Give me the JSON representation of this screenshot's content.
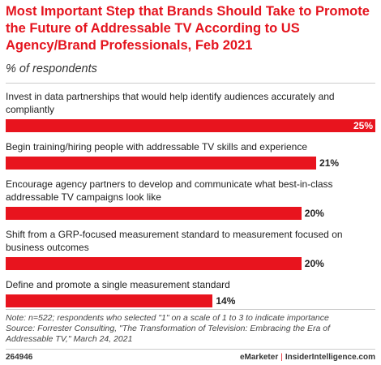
{
  "chart_data": {
    "type": "bar",
    "orientation": "horizontal",
    "title": "Most Important Step that Brands Should Take to Promote the Future of Addressable TV According to US Agency/Brand Professionals, Feb 2021",
    "subtitle": "% of respondents",
    "categories": [
      "Invest in data partnerships that would help identify audiences accurately and compliantly",
      "Begin training/hiring people with addressable TV skills and experience",
      "Encourage agency partners to develop and communicate what best-in-class addressable TV campaigns look like",
      "Shift from a GRP-focused measurement standard to measurement focused on business outcomes",
      "Define and promote a single measurement standard"
    ],
    "values": [
      25,
      21,
      20,
      20,
      14
    ],
    "value_labels": [
      "25%",
      "21%",
      "20%",
      "20%",
      "14%"
    ],
    "color": "#e8141e",
    "note": "Note: n=522; respondents who selected \"1\" on a scale of 1 to 3 to indicate importance",
    "source": "Source: Forrester Consulting, \"The Transformation of Television: Embracing the Era of Addressable TV,\" March 24, 2021",
    "chart_id": "264946",
    "brand": "eMarketer",
    "separator": "|",
    "site": "InsiderIntelligence.com"
  }
}
